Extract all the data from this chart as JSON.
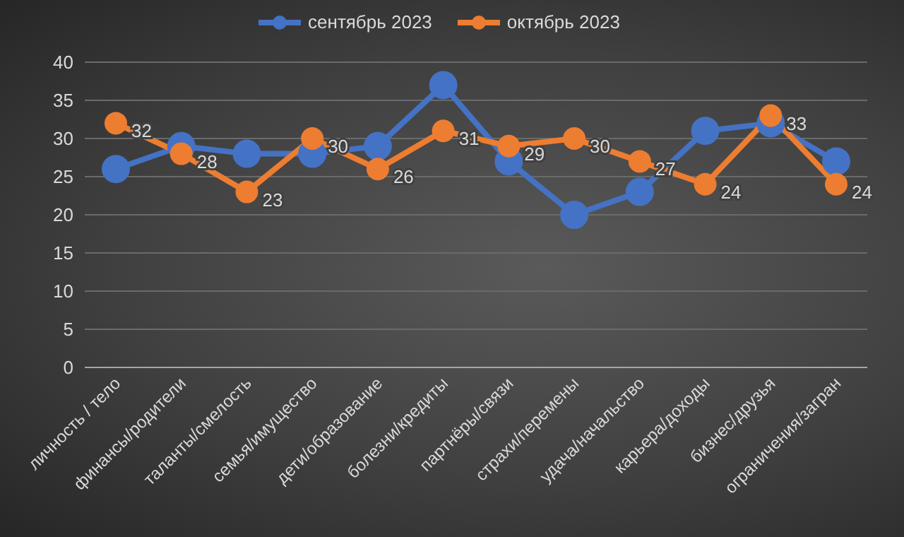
{
  "chart_data": {
    "type": "line",
    "categories": [
      "личность / тело",
      "финансы/родители",
      "таланты/смелость",
      "семья/имущество",
      "дети/образование",
      "болезни/кредиты",
      "партнёры/связи",
      "страхи/перемены",
      "удача/начальство",
      "карьера/доходы",
      "бизнес/друзья",
      "ограничения/загран"
    ],
    "series": [
      {
        "name": "сентябрь 2023",
        "color": "#4472c4",
        "values": [
          26,
          29,
          28,
          28,
          29,
          37,
          27,
          20,
          23,
          31,
          32,
          27
        ]
      },
      {
        "name": "октябрь 2023",
        "color": "#ed7d31",
        "values": [
          32,
          28,
          23,
          30,
          26,
          31,
          29,
          30,
          27,
          24,
          33,
          24
        ],
        "value_labels": [
          "32",
          "28",
          "23",
          "30",
          "26",
          "31",
          "29",
          "30",
          "27",
          "24",
          "33",
          "24"
        ]
      }
    ],
    "ylim": [
      0,
      40
    ],
    "yticks": [
      0,
      5,
      10,
      15,
      20,
      25,
      30,
      35,
      40
    ],
    "grid": "y",
    "legend": "top",
    "marker": "circle",
    "line_style": "solid"
  }
}
